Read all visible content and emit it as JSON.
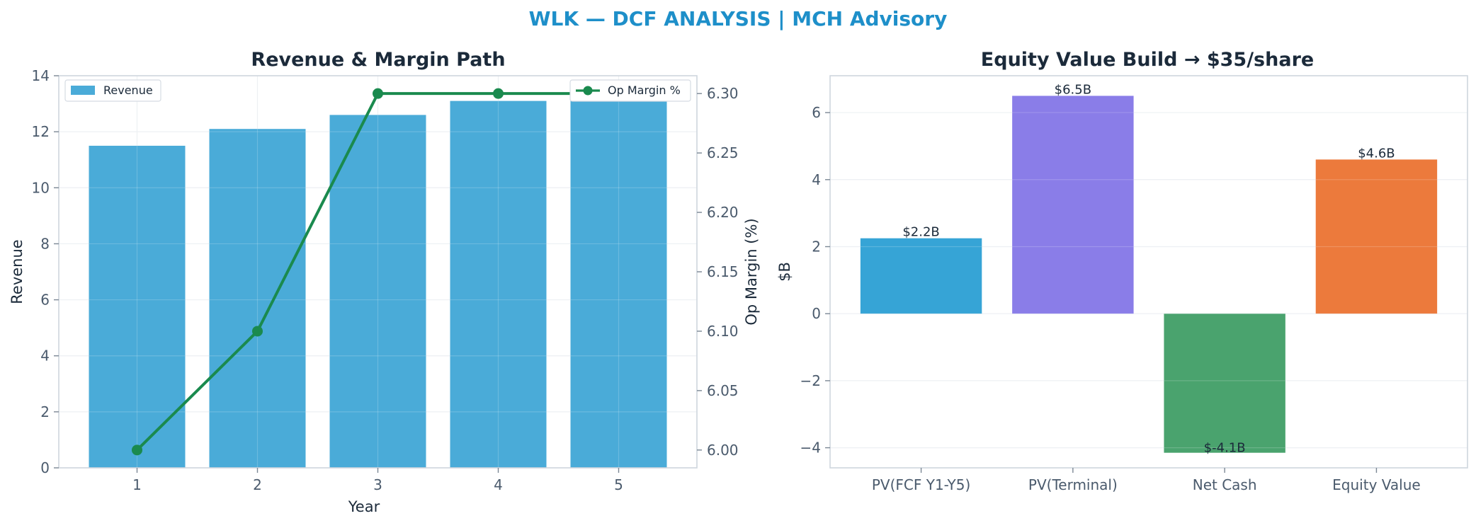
{
  "suptitle": "WLK — DCF ANALYSIS | MCH Advisory",
  "chart_data": [
    {
      "type": "bar",
      "title": "Revenue & Margin Path",
      "xlabel": "Year",
      "ylabel": "Revenue",
      "y2label": "Op Margin (%)",
      "categories": [
        "1",
        "2",
        "3",
        "4",
        "5"
      ],
      "ylim": [
        0,
        14
      ],
      "y2lim": [
        5.985,
        6.315
      ],
      "yticks": [
        0,
        2,
        4,
        6,
        8,
        10,
        12,
        14
      ],
      "y2ticks": [
        6.0,
        6.05,
        6.1,
        6.15,
        6.2,
        6.25,
        6.3
      ],
      "grid": true,
      "series": [
        {
          "name": "Revenue",
          "type": "bar",
          "axis": "left",
          "color": "#4aabd8",
          "values": [
            11.5,
            12.1,
            12.6,
            13.1,
            13.7
          ]
        },
        {
          "name": "Op Margin %",
          "type": "line",
          "axis": "right",
          "color": "#1a8a4e",
          "values": [
            6.0,
            6.1,
            6.3,
            6.3,
            6.3
          ]
        }
      ],
      "legend": {
        "left": {
          "label": "Revenue",
          "position": "top-left"
        },
        "right": {
          "label": "Op Margin %",
          "position": "top-right"
        }
      }
    },
    {
      "type": "bar",
      "title": "Equity Value Build → $35/share",
      "xlabel": "",
      "ylabel": "$B",
      "categories": [
        "PV(FCF Y1-Y5)",
        "PV(Terminal)",
        "Net Cash",
        "Equity Value"
      ],
      "values": [
        2.25,
        6.5,
        -4.15,
        4.6
      ],
      "labels": [
        "$2.2B",
        "$6.5B",
        "$-4.1B",
        "$4.6B"
      ],
      "colors": [
        "#36a4d6",
        "#8a7de8",
        "#4aa36e",
        "#ec7a3c"
      ],
      "ylim": [
        -4.6,
        7.1
      ],
      "yticks": [
        -4,
        -2,
        0,
        2,
        4,
        6
      ],
      "ytick_labels": [
        "−4",
        "−2",
        "0",
        "2",
        "4",
        "6"
      ],
      "grid": true
    }
  ]
}
